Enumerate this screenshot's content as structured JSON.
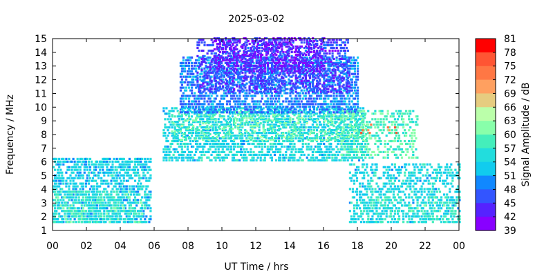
{
  "chart_data": {
    "type": "heatmap",
    "title": "2025-03-02",
    "xlabel": "UT Time / hrs",
    "ylabel": "Frequency / MHz",
    "colorbar_label": "Signal Amplitude / dB",
    "xlim": [
      0,
      24
    ],
    "ylim": [
      1,
      15
    ],
    "x_ticks": [
      "00",
      "02",
      "04",
      "06",
      "08",
      "10",
      "12",
      "14",
      "16",
      "18",
      "20",
      "22",
      "00"
    ],
    "y_ticks": [
      "1",
      "2",
      "3",
      "4",
      "5",
      "6",
      "7",
      "8",
      "9",
      "10",
      "11",
      "12",
      "13",
      "14",
      "15"
    ],
    "colorbar_ticks": [
      "81",
      "78",
      "75",
      "72",
      "69",
      "66",
      "63",
      "60",
      "57",
      "54",
      "51",
      "48",
      "45",
      "42",
      "39"
    ],
    "colorbar_colors": [
      "#ff0000",
      "#ff5533",
      "#ff7744",
      "#ffa060",
      "#e6cc80",
      "#bbffaa",
      "#88ffaa",
      "#44eebb",
      "#22dddd",
      "#11ccee",
      "#1188ff",
      "#3355ff",
      "#5522ff",
      "#8800ff"
    ],
    "colorbar_range": [
      39,
      81
    ],
    "grid": false,
    "regions": [
      {
        "t": [
          0.0,
          5.8
        ],
        "f": [
          1.5,
          6.2
        ],
        "amp": 53,
        "density": 0.55
      },
      {
        "t": [
          0.0,
          5.5
        ],
        "f": [
          1.5,
          3.8
        ],
        "amp": 57,
        "density": 0.35
      },
      {
        "t": [
          6.5,
          18.3
        ],
        "f": [
          6.0,
          9.8
        ],
        "amp": 54,
        "density": 0.5
      },
      {
        "t": [
          7.0,
          18.5
        ],
        "f": [
          7.5,
          9.6
        ],
        "amp": 60,
        "density": 0.25
      },
      {
        "t": [
          7.5,
          18.0
        ],
        "f": [
          9.5,
          13.5
        ],
        "amp": 48,
        "density": 0.55
      },
      {
        "t": [
          8.5,
          17.5
        ],
        "f": [
          11.0,
          14.8
        ],
        "amp": 44,
        "density": 0.45
      },
      {
        "t": [
          9.5,
          16.0
        ],
        "f": [
          12.5,
          15.0
        ],
        "amp": 41,
        "density": 0.4
      },
      {
        "t": [
          17.0,
          21.5
        ],
        "f": [
          6.2,
          9.7
        ],
        "amp": 59,
        "density": 0.35
      },
      {
        "t": [
          18.0,
          20.5
        ],
        "f": [
          8.0,
          8.6
        ],
        "amp": 75,
        "density": 0.15
      },
      {
        "t": [
          17.5,
          24.0
        ],
        "f": [
          1.5,
          5.8
        ],
        "amp": 54,
        "density": 0.4
      },
      {
        "t": [
          18.5,
          24.0
        ],
        "f": [
          1.5,
          3.5
        ],
        "amp": 57,
        "density": 0.3
      }
    ]
  }
}
